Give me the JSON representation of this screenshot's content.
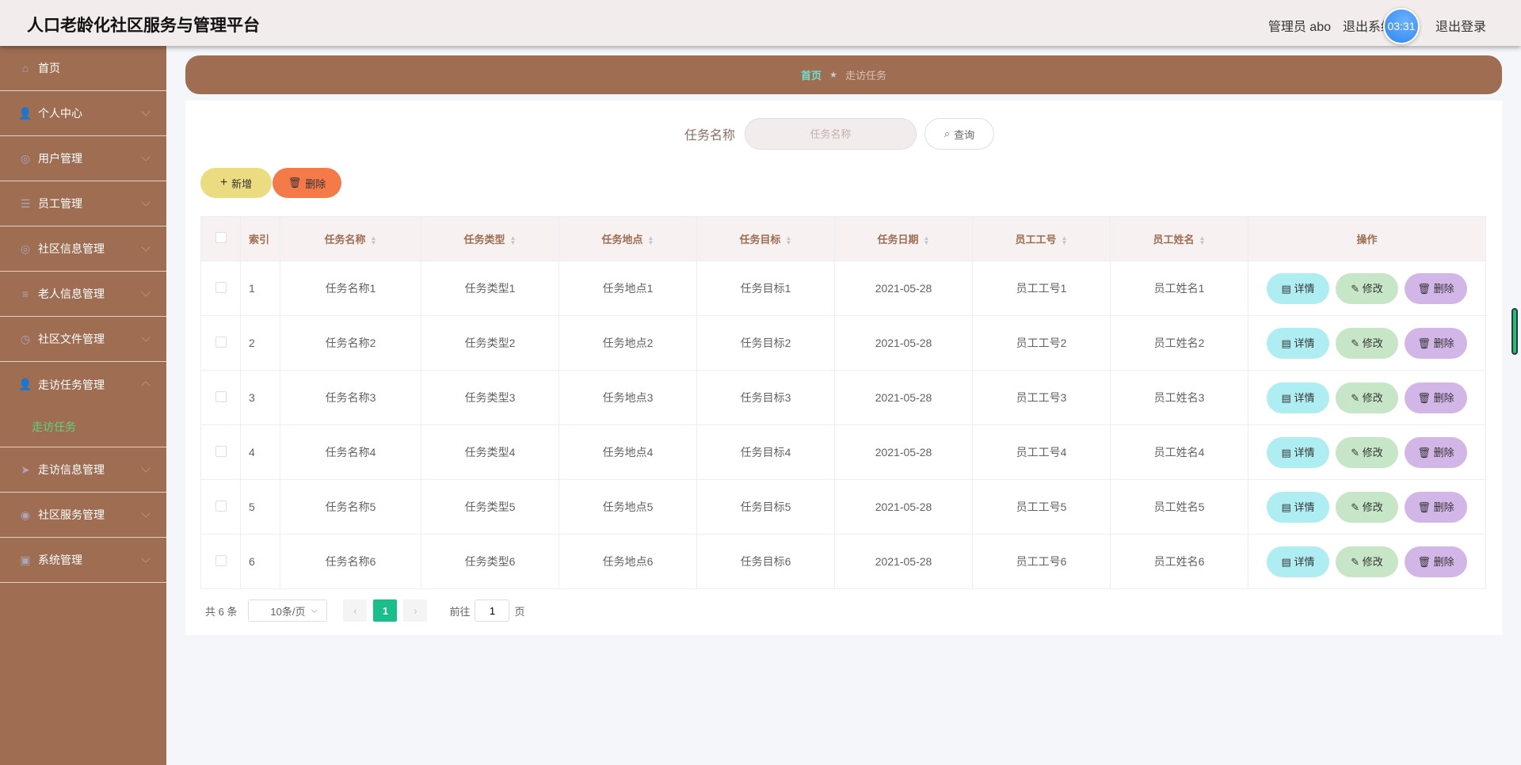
{
  "header": {
    "title": "人口老龄化社区服务与管理平台",
    "user": "管理员 abo",
    "exit_system": "退出系统",
    "timer": "03:31",
    "logout": "退出登录"
  },
  "sidebar": {
    "items": [
      {
        "label": "首页",
        "icon": "home-icon"
      },
      {
        "label": "个人中心",
        "icon": "user-icon"
      },
      {
        "label": "用户管理",
        "icon": "compass-icon"
      },
      {
        "label": "员工管理",
        "icon": "sliders-icon"
      },
      {
        "label": "社区信息管理",
        "icon": "compass-icon"
      },
      {
        "label": "老人信息管理",
        "icon": "list-icon"
      },
      {
        "label": "社区文件管理",
        "icon": "clock-icon"
      },
      {
        "label": "走访任务管理",
        "icon": "user-icon",
        "children": [
          {
            "label": "走访任务",
            "active": true
          }
        ]
      },
      {
        "label": "走访信息管理",
        "icon": "paper-plane-icon"
      },
      {
        "label": "社区服务管理",
        "icon": "globe-icon"
      },
      {
        "label": "系统管理",
        "icon": "chat-icon"
      }
    ]
  },
  "breadcrumb": {
    "home": "首页",
    "current": "走访任务"
  },
  "search": {
    "label": "任务名称",
    "placeholder": "任务名称",
    "value": "",
    "button": "查询"
  },
  "toolbar": {
    "add": "新增",
    "delete": "删除"
  },
  "table": {
    "columns": [
      "索引",
      "任务名称",
      "任务类型",
      "任务地点",
      "任务目标",
      "任务日期",
      "员工工号",
      "员工姓名",
      "操作"
    ],
    "rows": [
      [
        "1",
        "任务名称1",
        "任务类型1",
        "任务地点1",
        "任务目标1",
        "2021-05-28",
        "员工工号1",
        "员工姓名1"
      ],
      [
        "2",
        "任务名称2",
        "任务类型2",
        "任务地点2",
        "任务目标2",
        "2021-05-28",
        "员工工号2",
        "员工姓名2"
      ],
      [
        "3",
        "任务名称3",
        "任务类型3",
        "任务地点3",
        "任务目标3",
        "2021-05-28",
        "员工工号3",
        "员工姓名3"
      ],
      [
        "4",
        "任务名称4",
        "任务类型4",
        "任务地点4",
        "任务目标4",
        "2021-05-28",
        "员工工号4",
        "员工姓名4"
      ],
      [
        "5",
        "任务名称5",
        "任务类型5",
        "任务地点5",
        "任务目标5",
        "2021-05-28",
        "员工工号5",
        "员工姓名5"
      ],
      [
        "6",
        "任务名称6",
        "任务类型6",
        "任务地点6",
        "任务目标6",
        "2021-05-28",
        "员工工号6",
        "员工姓名6"
      ]
    ],
    "actions": {
      "detail": "详情",
      "edit": "修改",
      "delete": "删除"
    }
  },
  "pagination": {
    "total": "共 6 条",
    "page_size": "10条/页",
    "current_page": "1",
    "goto_label": "前往",
    "goto_value": "1",
    "page_suffix": "页"
  },
  "colors": {
    "brand": "#9e6d52",
    "active_menu": "#5fd37b",
    "page_active": "#19be8a"
  }
}
